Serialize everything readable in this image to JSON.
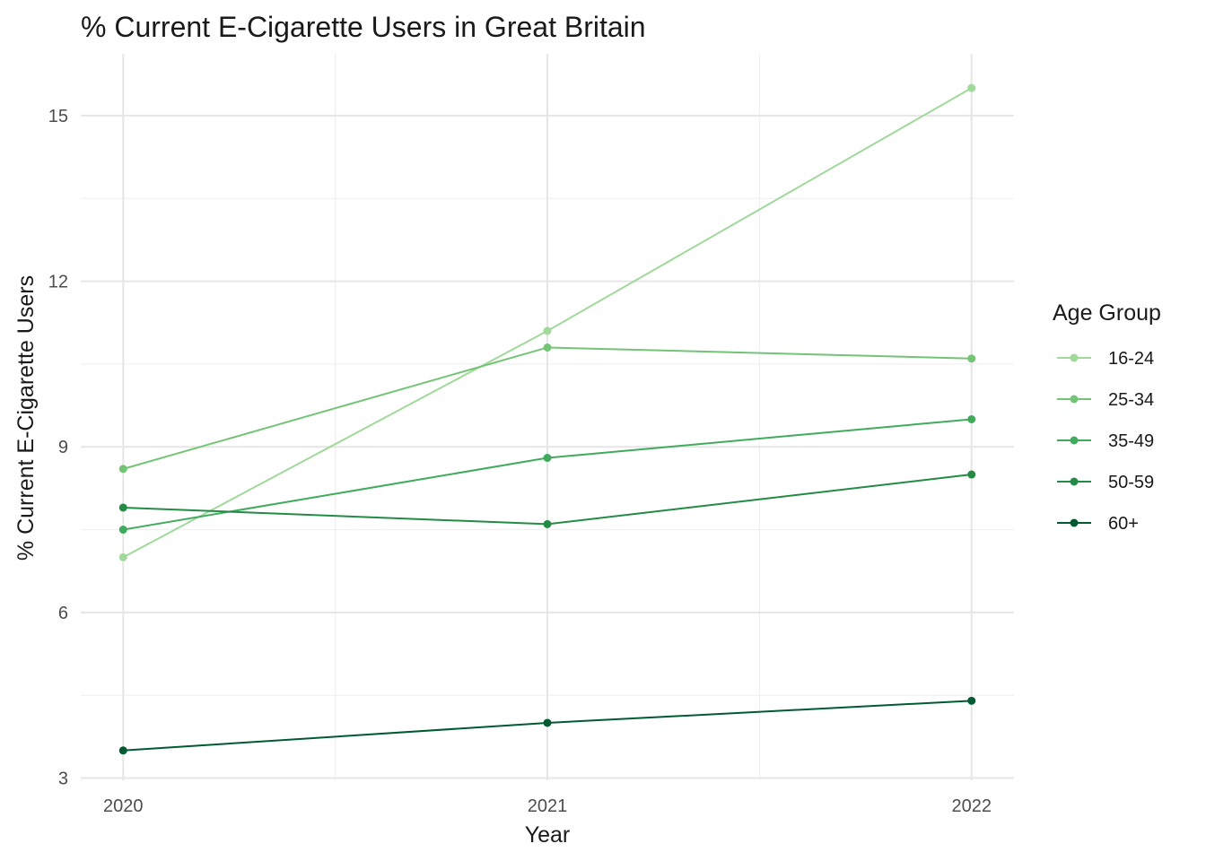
{
  "chart_data": {
    "type": "line",
    "title": "% Current E-Cigarette Users in Great Britain",
    "xlabel": "Year",
    "ylabel": "% Current E-Cigarette Users",
    "x": [
      2020,
      2021,
      2022
    ],
    "x_tick_labels": [
      "2020",
      "2021",
      "2022"
    ],
    "y_ticks": [
      3,
      6,
      9,
      12,
      15
    ],
    "y_tick_labels": [
      "3",
      "6",
      "9",
      "12",
      "15"
    ],
    "ylim": [
      2.96,
      16.12
    ],
    "xlim": [
      2019.9,
      2022.1
    ],
    "grid": true,
    "legend": {
      "title": "Age Group",
      "position": "right"
    },
    "series": [
      {
        "name": "16-24",
        "color": "#a1d99b",
        "values": [
          7.0,
          11.1,
          15.5
        ]
      },
      {
        "name": "25-34",
        "color": "#74c476",
        "values": [
          8.6,
          10.8,
          10.6
        ]
      },
      {
        "name": "35-49",
        "color": "#41ab5d",
        "values": [
          7.5,
          8.8,
          9.5
        ]
      },
      {
        "name": "50-59",
        "color": "#238b45",
        "values": [
          7.9,
          7.6,
          8.5
        ]
      },
      {
        "name": "60+",
        "color": "#005a32",
        "values": [
          3.5,
          4.0,
          4.4
        ]
      }
    ]
  }
}
